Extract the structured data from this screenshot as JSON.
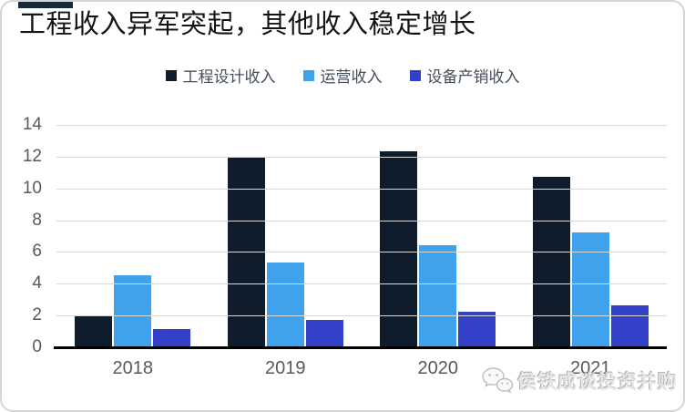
{
  "header": {
    "title": "工程收入异军突起，其他收入稳定增长",
    "accent_color": "#16283c"
  },
  "chart_data": {
    "type": "bar",
    "title": "工程收入异军突起，其他收入稳定增长",
    "categories": [
      "2018",
      "2019",
      "2020",
      "2021"
    ],
    "series": [
      {
        "name": "工程设计收入",
        "color": "#0e1c2b",
        "values": [
          2.0,
          12.0,
          12.4,
          10.8
        ]
      },
      {
        "name": "运营收入",
        "color": "#3ea2ec",
        "values": [
          4.6,
          5.4,
          6.5,
          7.3
        ]
      },
      {
        "name": "设备产销收入",
        "color": "#3340c8",
        "values": [
          1.2,
          1.8,
          2.3,
          2.7
        ]
      }
    ],
    "xlabel": "",
    "ylabel": "",
    "ylim": [
      0,
      14
    ],
    "yticks": [
      0,
      2,
      4,
      6,
      8,
      10,
      12,
      14
    ],
    "grid": true,
    "grid_color": "#d9d9d9",
    "legend_position": "top"
  },
  "watermark": {
    "icon": "wechat-icon",
    "text": "侯铁成谈投资并购"
  }
}
